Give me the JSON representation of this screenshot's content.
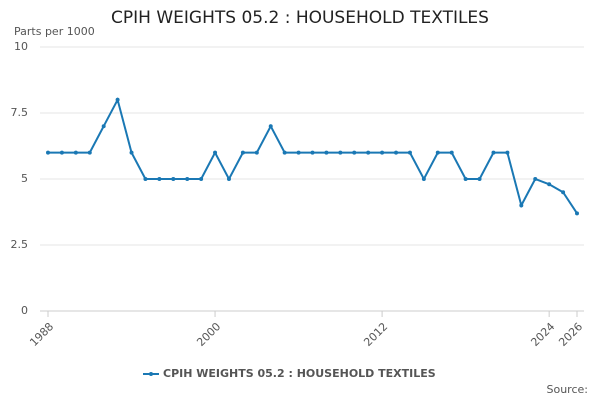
{
  "chart_data": {
    "type": "line",
    "title": "CPIH WEIGHTS 05.2 : HOUSEHOLD TEXTILES",
    "y_label": "Parts per 1000",
    "source": "Source:",
    "x": [
      1988,
      1989,
      1990,
      1991,
      1992,
      1993,
      1994,
      1995,
      1996,
      1997,
      1998,
      1999,
      2000,
      2001,
      2002,
      2003,
      2004,
      2005,
      2006,
      2007,
      2008,
      2009,
      2010,
      2011,
      2012,
      2013,
      2014,
      2015,
      2016,
      2017,
      2018,
      2019,
      2020,
      2021,
      2022,
      2023,
      2024,
      2025,
      2026
    ],
    "series": [
      {
        "name": "CPIH WEIGHTS 05.2 : HOUSEHOLD TEXTILES",
        "color": "#1a78b4",
        "values": [
          6,
          6,
          6,
          6,
          7,
          8,
          6,
          5,
          5,
          5,
          5,
          5,
          6,
          5,
          6,
          6,
          7,
          6,
          6,
          6,
          6,
          6,
          6,
          6,
          6,
          6,
          6,
          5,
          6,
          6,
          5,
          5,
          6,
          6,
          4,
          5,
          4.8,
          4.5,
          3.7
        ]
      }
    ],
    "xlim": [
      1988,
      2026
    ],
    "xticks": [
      1988,
      2000,
      2012,
      2024,
      2026
    ],
    "ylim": [
      0,
      10
    ],
    "yticks": [
      0,
      2.5,
      5,
      7.5,
      10
    ],
    "grid": true,
    "legend": "bottom"
  }
}
